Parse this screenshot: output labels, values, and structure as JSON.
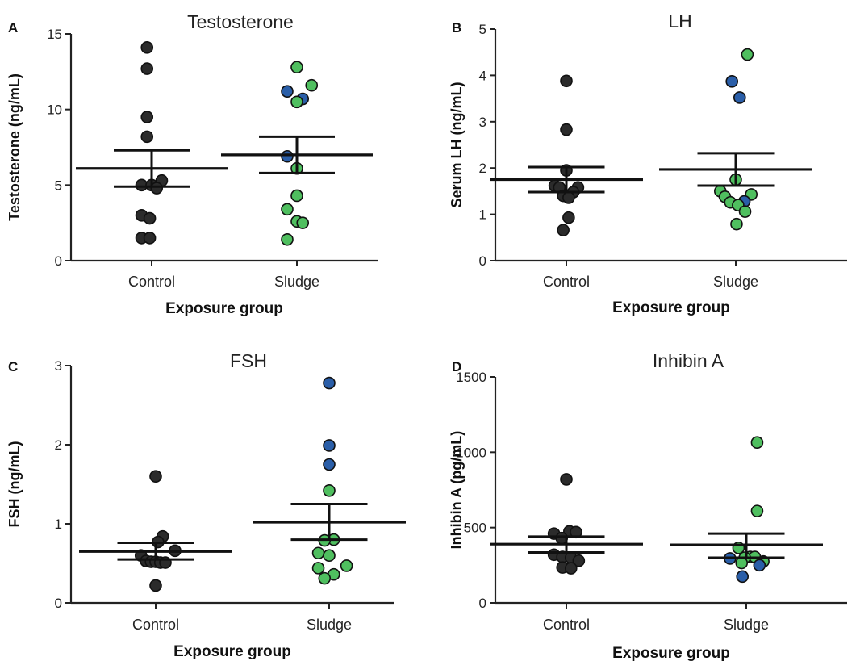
{
  "colors": {
    "control": "#2b2b2b",
    "sludge_green": "#4fbf5f",
    "sludge_blue": "#2a5ea8",
    "axis": "#222222"
  },
  "chart_data": [
    {
      "letter": "A",
      "type": "scatter",
      "title": "Testosterone",
      "xlabel": "Exposure group",
      "ylabel": "Testosterone (ng/mL)",
      "categories": [
        "Control",
        "Sludge"
      ],
      "ylim": [
        0,
        15
      ],
      "yticks": [
        "0",
        "5",
        "10",
        "15"
      ],
      "ytick_values": [
        0,
        5,
        10,
        15
      ],
      "groups": [
        {
          "category": "Control",
          "mean": 6.1,
          "sem_low": 4.9,
          "sem_high": 7.3,
          "points": [
            {
              "y": 14.1,
              "dx": -0.12,
              "color": "control"
            },
            {
              "y": 12.7,
              "dx": -0.12,
              "color": "control"
            },
            {
              "y": 9.5,
              "dx": -0.12,
              "color": "control"
            },
            {
              "y": 8.2,
              "dx": -0.12,
              "color": "control"
            },
            {
              "y": 5.3,
              "dx": 0.26,
              "color": "control"
            },
            {
              "y": 5.0,
              "dx": -0.26,
              "color": "control"
            },
            {
              "y": 5.0,
              "dx": 0.0,
              "color": "control"
            },
            {
              "y": 4.8,
              "dx": 0.13,
              "color": "control"
            },
            {
              "y": 3.0,
              "dx": -0.26,
              "color": "control"
            },
            {
              "y": 2.8,
              "dx": -0.05,
              "color": "control"
            },
            {
              "y": 1.5,
              "dx": -0.26,
              "color": "control"
            },
            {
              "y": 1.5,
              "dx": -0.05,
              "color": "control"
            }
          ]
        },
        {
          "category": "Sludge",
          "mean": 7.0,
          "sem_low": 5.8,
          "sem_high": 8.2,
          "points": [
            {
              "y": 12.8,
              "dx": 0.0,
              "color": "sludge_green"
            },
            {
              "y": 11.6,
              "dx": 0.38,
              "color": "sludge_green"
            },
            {
              "y": 11.2,
              "dx": -0.25,
              "color": "sludge_blue"
            },
            {
              "y": 10.7,
              "dx": 0.15,
              "color": "sludge_blue"
            },
            {
              "y": 10.5,
              "dx": 0.0,
              "color": "sludge_green"
            },
            {
              "y": 6.9,
              "dx": -0.25,
              "color": "sludge_blue"
            },
            {
              "y": 6.1,
              "dx": 0.0,
              "color": "sludge_green"
            },
            {
              "y": 4.3,
              "dx": 0.0,
              "color": "sludge_green"
            },
            {
              "y": 3.4,
              "dx": -0.25,
              "color": "sludge_green"
            },
            {
              "y": 2.6,
              "dx": 0.0,
              "color": "sludge_green"
            },
            {
              "y": 2.5,
              "dx": 0.15,
              "color": "sludge_green"
            },
            {
              "y": 1.4,
              "dx": -0.25,
              "color": "sludge_green"
            }
          ]
        }
      ]
    },
    {
      "letter": "B",
      "type": "scatter",
      "title": "LH",
      "xlabel": "Exposure group",
      "ylabel": "Serum LH (ng/mL)",
      "categories": [
        "Control",
        "Sludge"
      ],
      "ylim": [
        0,
        5
      ],
      "yticks": [
        "0",
        "1",
        "2",
        "3",
        "4",
        "5"
      ],
      "ytick_values": [
        0,
        1,
        2,
        3,
        4,
        5
      ],
      "groups": [
        {
          "category": "Control",
          "mean": 1.75,
          "sem_low": 1.48,
          "sem_high": 2.02,
          "points": [
            {
              "y": 3.88,
              "dx": 0.0,
              "color": "control"
            },
            {
              "y": 2.83,
              "dx": 0.0,
              "color": "control"
            },
            {
              "y": 1.95,
              "dx": 0.0,
              "color": "control"
            },
            {
              "y": 1.62,
              "dx": -0.3,
              "color": "control"
            },
            {
              "y": 1.58,
              "dx": -0.18,
              "color": "control"
            },
            {
              "y": 1.58,
              "dx": 0.3,
              "color": "control"
            },
            {
              "y": 1.48,
              "dx": 0.18,
              "color": "control"
            },
            {
              "y": 1.4,
              "dx": -0.08,
              "color": "control"
            },
            {
              "y": 1.36,
              "dx": 0.06,
              "color": "control"
            },
            {
              "y": 0.93,
              "dx": 0.06,
              "color": "control"
            },
            {
              "y": 0.66,
              "dx": -0.08,
              "color": "control"
            }
          ]
        },
        {
          "category": "Sludge",
          "mean": 1.97,
          "sem_low": 1.62,
          "sem_high": 2.32,
          "points": [
            {
              "y": 4.45,
              "dx": 0.3,
              "color": "sludge_green"
            },
            {
              "y": 3.87,
              "dx": -0.1,
              "color": "sludge_blue"
            },
            {
              "y": 3.52,
              "dx": 0.1,
              "color": "sludge_blue"
            },
            {
              "y": 1.75,
              "dx": 0.0,
              "color": "sludge_green"
            },
            {
              "y": 1.5,
              "dx": -0.4,
              "color": "sludge_green"
            },
            {
              "y": 1.43,
              "dx": 0.4,
              "color": "sludge_green"
            },
            {
              "y": 1.38,
              "dx": -0.28,
              "color": "sludge_green"
            },
            {
              "y": 1.28,
              "dx": 0.22,
              "color": "sludge_blue"
            },
            {
              "y": 1.26,
              "dx": -0.14,
              "color": "sludge_green"
            },
            {
              "y": 1.2,
              "dx": 0.06,
              "color": "sludge_green"
            },
            {
              "y": 1.06,
              "dx": 0.24,
              "color": "sludge_green"
            },
            {
              "y": 0.79,
              "dx": 0.02,
              "color": "sludge_green"
            }
          ]
        }
      ]
    },
    {
      "letter": "C",
      "type": "scatter",
      "title": "FSH",
      "xlabel": "Exposure group",
      "ylabel": "FSH (ng/mL)",
      "categories": [
        "Control",
        "Sludge"
      ],
      "ylim": [
        0,
        3
      ],
      "yticks": [
        "0",
        "1",
        "2",
        "3"
      ],
      "ytick_values": [
        0,
        1,
        2,
        3
      ],
      "groups": [
        {
          "category": "Control",
          "mean": 0.65,
          "sem_low": 0.55,
          "sem_high": 0.76,
          "points": [
            {
              "y": 1.6,
              "dx": 0.0,
              "color": "control"
            },
            {
              "y": 0.84,
              "dx": 0.18,
              "color": "control"
            },
            {
              "y": 0.77,
              "dx": 0.06,
              "color": "control"
            },
            {
              "y": 0.66,
              "dx": 0.5,
              "color": "control"
            },
            {
              "y": 0.6,
              "dx": -0.38,
              "color": "control"
            },
            {
              "y": 0.53,
              "dx": -0.25,
              "color": "control"
            },
            {
              "y": 0.52,
              "dx": -0.12,
              "color": "control"
            },
            {
              "y": 0.52,
              "dx": 0.0,
              "color": "control"
            },
            {
              "y": 0.51,
              "dx": 0.12,
              "color": "control"
            },
            {
              "y": 0.51,
              "dx": 0.25,
              "color": "control"
            },
            {
              "y": 0.22,
              "dx": 0.0,
              "color": "control"
            }
          ]
        },
        {
          "category": "Sludge",
          "mean": 1.02,
          "sem_low": 0.8,
          "sem_high": 1.25,
          "points": [
            {
              "y": 2.78,
              "dx": 0.0,
              "color": "sludge_blue"
            },
            {
              "y": 1.99,
              "dx": 0.0,
              "color": "sludge_blue"
            },
            {
              "y": 1.75,
              "dx": 0.0,
              "color": "sludge_blue"
            },
            {
              "y": 1.42,
              "dx": 0.0,
              "color": "sludge_green"
            },
            {
              "y": 0.8,
              "dx": 0.12,
              "color": "sludge_green"
            },
            {
              "y": 0.79,
              "dx": -0.12,
              "color": "sludge_green"
            },
            {
              "y": 0.63,
              "dx": -0.28,
              "color": "sludge_green"
            },
            {
              "y": 0.6,
              "dx": 0.0,
              "color": "sludge_green"
            },
            {
              "y": 0.47,
              "dx": 0.45,
              "color": "sludge_green"
            },
            {
              "y": 0.44,
              "dx": -0.28,
              "color": "sludge_green"
            },
            {
              "y": 0.36,
              "dx": 0.12,
              "color": "sludge_green"
            },
            {
              "y": 0.31,
              "dx": -0.12,
              "color": "sludge_green"
            }
          ]
        }
      ]
    },
    {
      "letter": "D",
      "type": "scatter",
      "title": "Inhibin A",
      "xlabel": "Exposure group",
      "ylabel": "Inhibin A (pg/mL)",
      "categories": [
        "Control",
        "Sludge"
      ],
      "ylim": [
        0,
        1500
      ],
      "yticks": [
        "0",
        "500",
        "1000",
        "1500"
      ],
      "ytick_values": [
        0,
        500,
        1000,
        1500
      ],
      "groups": [
        {
          "category": "Control",
          "mean": 390,
          "sem_low": 335,
          "sem_high": 440,
          "points": [
            {
              "y": 820,
              "dx": 0.0,
              "color": "control"
            },
            {
              "y": 475,
              "dx": 0.08,
              "color": "control"
            },
            {
              "y": 470,
              "dx": 0.25,
              "color": "control"
            },
            {
              "y": 460,
              "dx": -0.32,
              "color": "control"
            },
            {
              "y": 430,
              "dx": -0.12,
              "color": "control"
            },
            {
              "y": 320,
              "dx": -0.32,
              "color": "control"
            },
            {
              "y": 305,
              "dx": -0.1,
              "color": "control"
            },
            {
              "y": 300,
              "dx": 0.12,
              "color": "control"
            },
            {
              "y": 280,
              "dx": 0.32,
              "color": "control"
            },
            {
              "y": 235,
              "dx": -0.1,
              "color": "control"
            },
            {
              "y": 230,
              "dx": 0.12,
              "color": "control"
            }
          ]
        },
        {
          "category": "Sludge",
          "mean": 385,
          "sem_low": 300,
          "sem_high": 460,
          "points": [
            {
              "y": 1065,
              "dx": 0.28,
              "color": "sludge_green"
            },
            {
              "y": 610,
              "dx": 0.28,
              "color": "sludge_green"
            },
            {
              "y": 365,
              "dx": -0.2,
              "color": "sludge_green"
            },
            {
              "y": 305,
              "dx": 0.1,
              "color": "sludge_green"
            },
            {
              "y": 305,
              "dx": 0.22,
              "color": "sludge_green"
            },
            {
              "y": 300,
              "dx": -0.04,
              "color": "sludge_green"
            },
            {
              "y": 295,
              "dx": -0.42,
              "color": "sludge_blue"
            },
            {
              "y": 275,
              "dx": 0.44,
              "color": "sludge_green"
            },
            {
              "y": 265,
              "dx": -0.12,
              "color": "sludge_green"
            },
            {
              "y": 250,
              "dx": 0.34,
              "color": "sludge_blue"
            },
            {
              "y": 175,
              "dx": -0.1,
              "color": "sludge_blue"
            }
          ]
        }
      ]
    }
  ]
}
